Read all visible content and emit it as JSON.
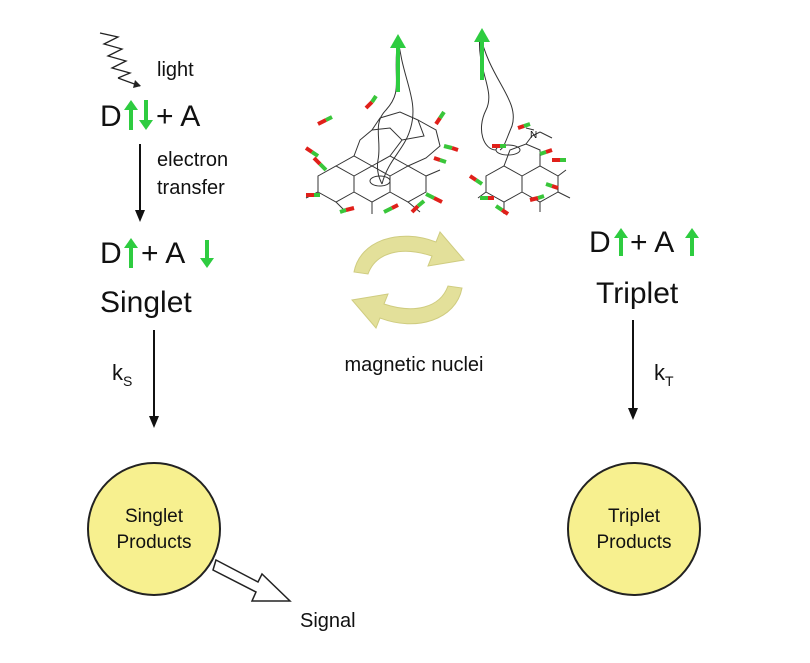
{
  "colors": {
    "spin_arrow": "#2ecc40",
    "node_fill": "#f7f08f",
    "node_stroke": "#222222",
    "cycle_arrow": "#d9d78a",
    "nucleus_red": "#e0201a",
    "nucleus_green": "#39c63a"
  },
  "left": {
    "light_label": "light",
    "d_label": "D",
    "plus_a_label": "+ A",
    "electron_transfer_line1": "electron",
    "electron_transfer_line2": "transfer",
    "pair_d": "D",
    "pair_plus_a": "+ A",
    "state_label": "Singlet",
    "rate_main": "k",
    "rate_sub": "S",
    "products_line1": "Singlet",
    "products_line2": "Products",
    "signal_label": "Signal"
  },
  "right": {
    "pair_d": "D",
    "pair_plus_a": "+ A",
    "state_label": "Triplet",
    "rate_main": "k",
    "rate_sub": "T",
    "products_line1": "Triplet",
    "products_line2": "Products"
  },
  "center": {
    "nuclei_label": "magnetic nuclei"
  },
  "icons": [
    "wavy-light-icon",
    "spin-up-arrow-icon",
    "spin-down-arrow-icon",
    "cycle-arrows-icon",
    "hollow-arrow-icon"
  ]
}
